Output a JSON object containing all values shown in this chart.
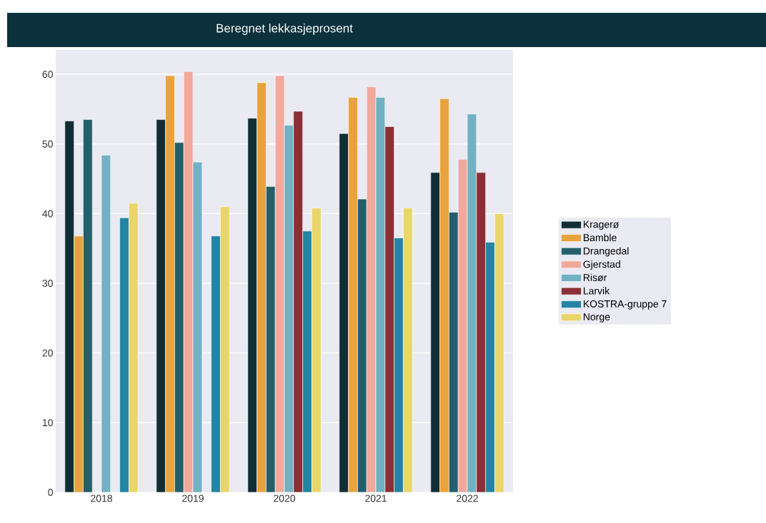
{
  "chart_data": {
    "type": "bar",
    "title": "Beregnet lekkasjeprosent",
    "categories": [
      "2018",
      "2019",
      "2020",
      "2021",
      "2022"
    ],
    "series": [
      {
        "name": "Kragerø",
        "color": "#112e36",
        "values": [
          53.3,
          53.5,
          53.7,
          51.5,
          45.9
        ]
      },
      {
        "name": "Bamble",
        "color": "#e8a33d",
        "values": [
          36.8,
          59.8,
          58.8,
          56.7,
          56.5
        ]
      },
      {
        "name": "Drangedal",
        "color": "#245f6b",
        "values": [
          53.5,
          50.2,
          43.9,
          42.1,
          40.2
        ]
      },
      {
        "name": "Gjerstad",
        "color": "#f2a89b",
        "values": [
          null,
          60.4,
          59.8,
          58.2,
          47.8
        ]
      },
      {
        "name": "Risør",
        "color": "#72b1c4",
        "values": [
          48.4,
          47.4,
          52.7,
          56.7,
          54.3
        ]
      },
      {
        "name": "Larvik",
        "color": "#8b2e35",
        "values": [
          null,
          null,
          54.7,
          52.5,
          45.9
        ]
      },
      {
        "name": "KOSTRA-gruppe 7",
        "color": "#2384a3",
        "values": [
          39.4,
          36.8,
          37.5,
          36.5,
          35.9
        ]
      },
      {
        "name": "Norge",
        "color": "#e9d66b",
        "values": [
          41.5,
          41.0,
          40.8,
          40.8,
          40.0
        ]
      }
    ],
    "ylim": [
      0,
      63.5
    ],
    "yticks": [
      0,
      10,
      20,
      30,
      40,
      50,
      60
    ],
    "grid": "y",
    "legend": "right"
  }
}
